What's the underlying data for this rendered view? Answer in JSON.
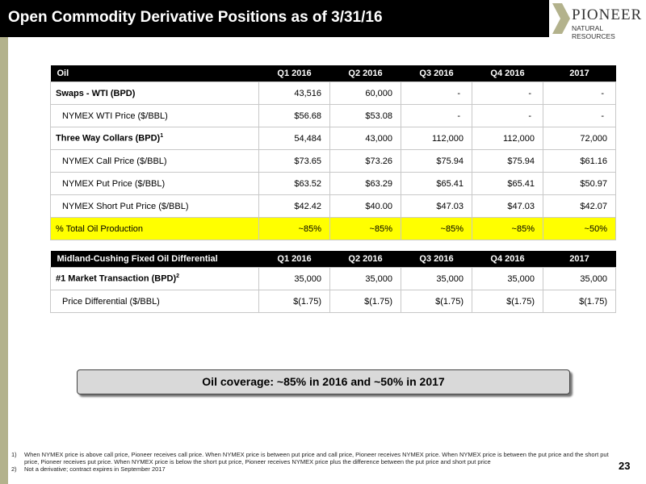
{
  "header": {
    "title": "Open Commodity Derivative Positions as of 3/31/16"
  },
  "logo": {
    "name": "PIONEER",
    "tagline": "NATURAL RESOURCES"
  },
  "oil_table": {
    "columns": [
      "Oil",
      "Q1 2016",
      "Q2 2016",
      "Q3 2016",
      "Q4 2016",
      "2017"
    ],
    "rows": [
      {
        "label": "Swaps - WTI (BPD)",
        "bold": true,
        "cells": [
          "43,516",
          "60,000",
          "-",
          "-",
          "-"
        ]
      },
      {
        "label": "NYMEX WTI Price ($/BBL)",
        "cells": [
          "$56.68",
          "$53.08",
          "-",
          "-",
          "-"
        ]
      },
      {
        "label": "Three Way Collars (BPD)",
        "note": "1",
        "bold": true,
        "cells": [
          "54,484",
          "43,000",
          "112,000",
          "112,000",
          "72,000"
        ]
      },
      {
        "label": "NYMEX Call Price ($/BBL)",
        "cells": [
          "$73.65",
          "$73.26",
          "$75.94",
          "$75.94",
          "$61.16"
        ]
      },
      {
        "label": "NYMEX Put Price ($/BBL)",
        "cells": [
          "$63.52",
          "$63.29",
          "$65.41",
          "$65.41",
          "$50.97"
        ]
      },
      {
        "label": "NYMEX Short Put Price ($/BBL)",
        "cells": [
          "$42.42",
          "$40.00",
          "$47.03",
          "$47.03",
          "$42.07"
        ]
      },
      {
        "label": "% Total Oil Production",
        "highlight": true,
        "cells": [
          "~85%",
          "~85%",
          "~85%",
          "~85%",
          "~50%"
        ]
      }
    ]
  },
  "differential_table": {
    "columns": [
      "Midland-Cushing Fixed Oil Differential",
      "Q1 2016",
      "Q2 2016",
      "Q3 2016",
      "Q4 2016",
      "2017"
    ],
    "rows": [
      {
        "label": "#1 Market Transaction (BPD)",
        "note": "2",
        "bold": true,
        "cells": [
          "35,000",
          "35,000",
          "35,000",
          "35,000",
          "35,000"
        ]
      },
      {
        "label": "Price Differential ($/BBL)",
        "cells": [
          "$(1.75)",
          "$(1.75)",
          "$(1.75)",
          "$(1.75)",
          "$(1.75)"
        ]
      }
    ]
  },
  "callout": {
    "text": "Oil coverage: ~85% in 2016 and ~50% in 2017"
  },
  "footnotes": [
    {
      "marker": "1)",
      "text": "When NYMEX price is above call price, Pioneer receives call price.  When NYMEX price is between put price and call price, Pioneer receives NYMEX price.  When NYMEX price is between the put price and the short put price, Pioneer receives put price.  When NYMEX price is below the short put price, Pioneer receives NYMEX price plus the difference between the put price and short put price"
    },
    {
      "marker": "2)",
      "text": "Not a derivative; contract expires in September 2017"
    }
  ],
  "page_number": "23"
}
